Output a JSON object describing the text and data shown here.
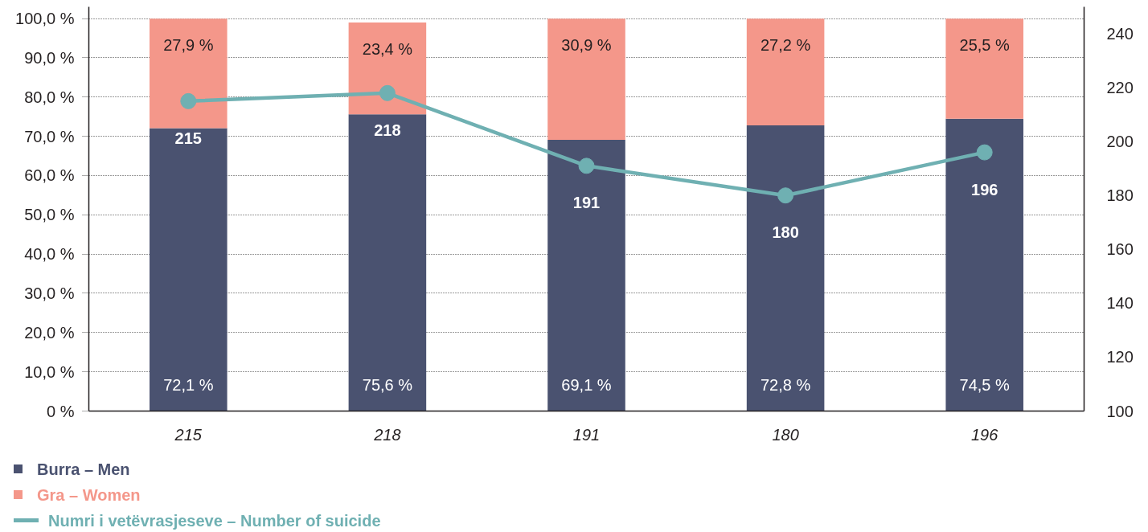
{
  "chart_data": {
    "type": "bar",
    "categories": [
      "215",
      "218",
      "191",
      "180",
      "196"
    ],
    "stacked": true,
    "series": [
      {
        "name": "Burra – Men",
        "color": "#4a5270",
        "values": [
          72.1,
          75.6,
          69.1,
          72.8,
          74.5
        ],
        "value_labels": [
          "72,1 %",
          "75,6 %",
          "69,1 %",
          "72,8 %",
          "74,5 %"
        ]
      },
      {
        "name": "Gra – Women",
        "color": "#f4978a",
        "values": [
          27.9,
          23.4,
          30.9,
          27.2,
          25.5
        ],
        "value_labels": [
          "27,9 %",
          "23,4 %",
          "30,9 %",
          "27,2 %",
          "25,5 %"
        ]
      },
      {
        "name": "Numri i vetëvrasjeseve – Number of suicide",
        "type": "line",
        "axis": "y2",
        "color": "#6fb0b2",
        "marker": "circle",
        "line_style": "solid",
        "values": [
          215,
          218,
          191,
          180,
          196
        ],
        "value_labels": [
          "215",
          "218",
          "191",
          "180",
          "196"
        ]
      }
    ],
    "ylim": [
      0,
      103
    ],
    "yticks": [
      {
        "value": 0,
        "label": "0 %"
      },
      {
        "value": 10,
        "label": "10,0 %"
      },
      {
        "value": 20,
        "label": "20,0 %"
      },
      {
        "value": 30,
        "label": "30,0 %"
      },
      {
        "value": 40,
        "label": "40,0 %"
      },
      {
        "value": 50,
        "label": "50,0 %"
      },
      {
        "value": 60,
        "label": "60,0 %"
      },
      {
        "value": 70,
        "label": "70,0 %"
      },
      {
        "value": 80,
        "label": "80,0 %"
      },
      {
        "value": 90,
        "label": "90,0 %"
      },
      {
        "value": 100,
        "label": "100,0 %"
      }
    ],
    "y2lim": [
      100,
      250
    ],
    "y2ticks": [
      100,
      120,
      140,
      160,
      180,
      200,
      220,
      240
    ],
    "grid": "y",
    "legend": "bottom left"
  }
}
